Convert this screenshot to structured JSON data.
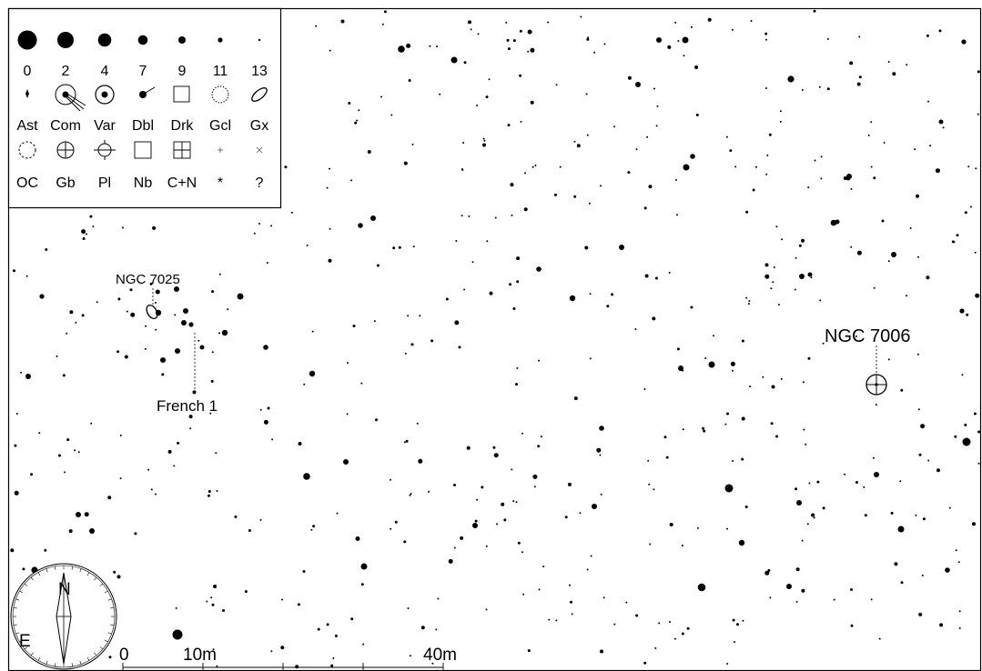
{
  "legend": {
    "magnitudes": [
      "0",
      "2",
      "4",
      "7",
      "9",
      "11",
      "13"
    ],
    "row1": [
      "Ast",
      "Com",
      "Var",
      "Dbl",
      "Drk",
      "Gcl",
      "Gx"
    ],
    "row2": [
      "OC",
      "Gb",
      "Pl",
      "Nb",
      "C+N",
      "*",
      "?"
    ]
  },
  "objects": [
    {
      "name": "NGC 7025",
      "type": "galaxy"
    },
    {
      "name": "French 1",
      "type": "asterism"
    },
    {
      "name": "NGC 7006",
      "type": "globular-cluster"
    }
  ],
  "compass": {
    "north": "N",
    "east": "E"
  },
  "scale_bar": {
    "labels": [
      "0",
      "10m",
      "40m"
    ]
  },
  "colors": {
    "ink": "#000000",
    "background": "#ffffff"
  }
}
